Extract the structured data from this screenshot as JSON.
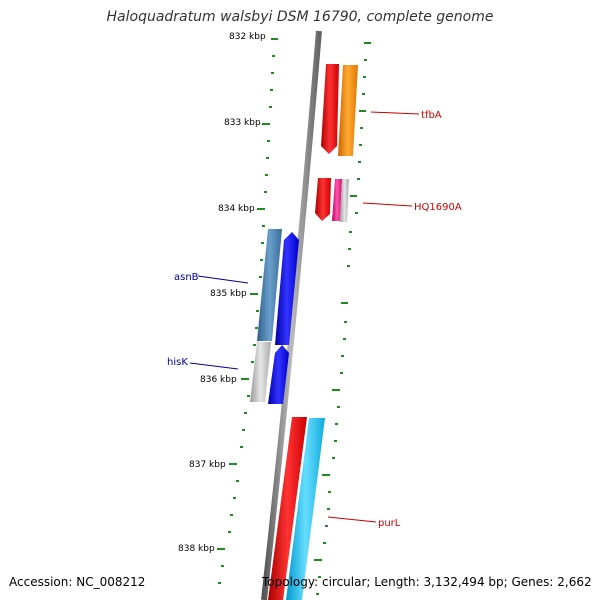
{
  "title": "Haloquadratum walsbyi DSM 16790, complete genome",
  "accession": "Accession: NC_008212",
  "summary": "Topology: circular; Length: 3,132,494 bp; Genes: 2,662",
  "kbp_labels": [
    "832 kbp",
    "833 kbp",
    "834 kbp",
    "835 kbp",
    "836 kbp",
    "837 kbp",
    "838 kbp"
  ],
  "genes": {
    "tfbA": "tfbA",
    "HQ1690A": "HQ1690A",
    "asnB": "asnB",
    "hisK": "hisK",
    "purL": "purL"
  },
  "colors": {
    "backbone": "#888888",
    "ticks": "#1e8c1e",
    "forward_label": "#cc0000",
    "reverse_label": "#000099",
    "red": "#ee1111",
    "orange": "#ff8c00",
    "blue": "#1010ee",
    "steelblue": "#4682b4",
    "skyblue": "#22bbee",
    "magenta": "#ee2288",
    "grey": "#bbbbbb"
  }
}
